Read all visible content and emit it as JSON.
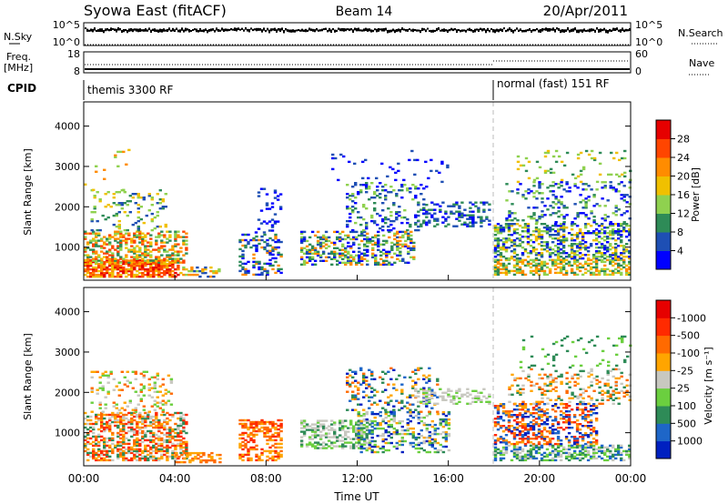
{
  "header": {
    "title": "Syowa East (fitACF)",
    "beam": "Beam 14",
    "date": "20/Apr/2011"
  },
  "panels": {
    "nsky": {
      "label": "N.Sky",
      "ticks_left": [
        "10^5",
        "10^0"
      ],
      "right_label": "N.Search",
      "ticks_right": [
        "10^5",
        "10^0"
      ]
    },
    "freq": {
      "label_lines": [
        "Freq.",
        "[MHz]"
      ],
      "ticks_left": [
        "18",
        "8"
      ],
      "right_label": "Nave",
      "ticks_right": [
        "60",
        "0"
      ]
    },
    "cpid": {
      "label": "CPID",
      "segments": [
        {
          "start_hour": 0,
          "end_hour": 18,
          "text": "themis 3300 RF"
        },
        {
          "start_hour": 18,
          "end_hour": 24,
          "text": "normal (fast) 151 RF"
        }
      ]
    }
  },
  "chart_data": [
    {
      "type": "heatmap",
      "name": "power",
      "ylabel": "Slant Range [km]",
      "xlim_hours": [
        0,
        24
      ],
      "ylim": [
        180,
        4600
      ],
      "yticks": [
        1000,
        2000,
        3000,
        4000
      ],
      "colorbar": {
        "label": "Power [dB]",
        "ticks": [
          "4",
          "8",
          "12",
          "16",
          "20",
          "24",
          "28"
        ],
        "colors": [
          "#0000ff",
          "#1e4fb4",
          "#2e8b57",
          "#8fd14f",
          "#f0c000",
          "#ff8c00",
          "#ff4500",
          "#e60000"
        ]
      },
      "clusters": [
        {
          "h": [
            0.0,
            4.2
          ],
          "r": [
            250,
            700
          ],
          "dens": 0.75,
          "cols": [
            7,
            6,
            5,
            4
          ]
        },
        {
          "h": [
            0.0,
            4.5
          ],
          "r": [
            600,
            1400
          ],
          "dens": 0.45,
          "cols": [
            3,
            4,
            5,
            2,
            6
          ]
        },
        {
          "h": [
            0.3,
            3.6
          ],
          "r": [
            1400,
            2400
          ],
          "dens": 0.15,
          "cols": [
            1,
            2,
            3,
            4
          ]
        },
        {
          "h": [
            0.0,
            2.0
          ],
          "r": [
            2400,
            3400
          ],
          "dens": 0.04,
          "cols": [
            3,
            4,
            5
          ]
        },
        {
          "h": [
            4.2,
            6.0
          ],
          "r": [
            250,
            500
          ],
          "dens": 0.4,
          "cols": [
            5,
            4,
            3,
            1
          ]
        },
        {
          "h": [
            6.8,
            8.6
          ],
          "r": [
            300,
            1300
          ],
          "dens": 0.35,
          "cols": [
            0,
            1,
            2,
            5
          ]
        },
        {
          "h": [
            7.5,
            8.6
          ],
          "r": [
            1300,
            2500
          ],
          "dens": 0.15,
          "cols": [
            0,
            1
          ]
        },
        {
          "h": [
            9.5,
            14.5
          ],
          "r": [
            550,
            1400
          ],
          "dens": 0.4,
          "cols": [
            0,
            1,
            2,
            3,
            5
          ]
        },
        {
          "h": [
            11.5,
            15.0
          ],
          "r": [
            1400,
            2600
          ],
          "dens": 0.2,
          "cols": [
            0,
            1,
            2,
            3
          ]
        },
        {
          "h": [
            10.5,
            16.0
          ],
          "r": [
            2600,
            3400
          ],
          "dens": 0.04,
          "cols": [
            0,
            1
          ]
        },
        {
          "h": [
            14.5,
            17.8
          ],
          "r": [
            1500,
            2100
          ],
          "dens": 0.3,
          "cols": [
            0,
            1,
            2
          ]
        },
        {
          "h": [
            18.0,
            24.0
          ],
          "r": [
            300,
            700
          ],
          "dens": 0.6,
          "cols": [
            5,
            4,
            3,
            2
          ]
        },
        {
          "h": [
            18.0,
            24.0
          ],
          "r": [
            700,
            1600
          ],
          "dens": 0.45,
          "cols": [
            0,
            1,
            2,
            3,
            4
          ]
        },
        {
          "h": [
            18.5,
            24.0
          ],
          "r": [
            1600,
            2600
          ],
          "dens": 0.2,
          "cols": [
            0,
            1,
            2,
            3
          ]
        },
        {
          "h": [
            19.0,
            24.0
          ],
          "r": [
            2600,
            3400
          ],
          "dens": 0.08,
          "cols": [
            2,
            3,
            4
          ]
        }
      ]
    },
    {
      "type": "heatmap",
      "name": "velocity",
      "xlabel": "Time UT",
      "ylabel": "Slant Range [km]",
      "xlim_hours": [
        0,
        24
      ],
      "ylim": [
        180,
        4600
      ],
      "yticks": [
        1000,
        2000,
        3000,
        4000
      ],
      "xticks": [
        "00:00",
        "04:00",
        "08:00",
        "12:00",
        "16:00",
        "20:00",
        "00:00"
      ],
      "colorbar": {
        "label": "Velocity [m s⁻¹]",
        "ticks": [
          "1000",
          "500",
          "100",
          "25",
          "-25",
          "-100",
          "-500",
          "-1000"
        ],
        "colors": [
          "#0020c0",
          "#1e66c8",
          "#2e8b57",
          "#6bcf3f",
          "#c8c8c0",
          "#ffa500",
          "#ff6a00",
          "#ff2a00",
          "#e60000"
        ]
      },
      "clusters": [
        {
          "h": [
            0.0,
            4.5
          ],
          "r": [
            300,
            1500
          ],
          "dens": 0.55,
          "cols": [
            5,
            6,
            7,
            4,
            2
          ]
        },
        {
          "h": [
            0.3,
            3.8
          ],
          "r": [
            1500,
            2500
          ],
          "dens": 0.2,
          "cols": [
            5,
            6,
            4,
            3
          ]
        },
        {
          "h": [
            4.0,
            6.0
          ],
          "r": [
            250,
            500
          ],
          "dens": 0.45,
          "cols": [
            6,
            5
          ]
        },
        {
          "h": [
            6.8,
            8.6
          ],
          "r": [
            300,
            1300
          ],
          "dens": 0.4,
          "cols": [
            5,
            6,
            7
          ]
        },
        {
          "h": [
            9.5,
            12.5
          ],
          "r": [
            600,
            1300
          ],
          "dens": 0.45,
          "cols": [
            4,
            4,
            3,
            2
          ]
        },
        {
          "h": [
            12.0,
            16.0
          ],
          "r": [
            500,
            1500
          ],
          "dens": 0.35,
          "cols": [
            0,
            1,
            2,
            3,
            4,
            5
          ]
        },
        {
          "h": [
            11.5,
            15.5
          ],
          "r": [
            1500,
            2600
          ],
          "dens": 0.2,
          "cols": [
            0,
            1,
            2,
            5,
            6
          ]
        },
        {
          "h": [
            14.5,
            17.8
          ],
          "r": [
            1700,
            2100
          ],
          "dens": 0.35,
          "cols": [
            4,
            4,
            3
          ]
        },
        {
          "h": [
            18.0,
            24.0
          ],
          "r": [
            300,
            700
          ],
          "dens": 0.55,
          "cols": [
            2,
            3,
            4,
            1
          ]
        },
        {
          "h": [
            18.0,
            22.5
          ],
          "r": [
            700,
            1700
          ],
          "dens": 0.45,
          "cols": [
            5,
            6,
            7,
            0,
            1
          ]
        },
        {
          "h": [
            18.5,
            24.0
          ],
          "r": [
            1700,
            2600
          ],
          "dens": 0.2,
          "cols": [
            5,
            6,
            4,
            2
          ]
        },
        {
          "h": [
            19.0,
            24.0
          ],
          "r": [
            2600,
            3400
          ],
          "dens": 0.08,
          "cols": [
            2,
            3
          ]
        }
      ]
    }
  ]
}
